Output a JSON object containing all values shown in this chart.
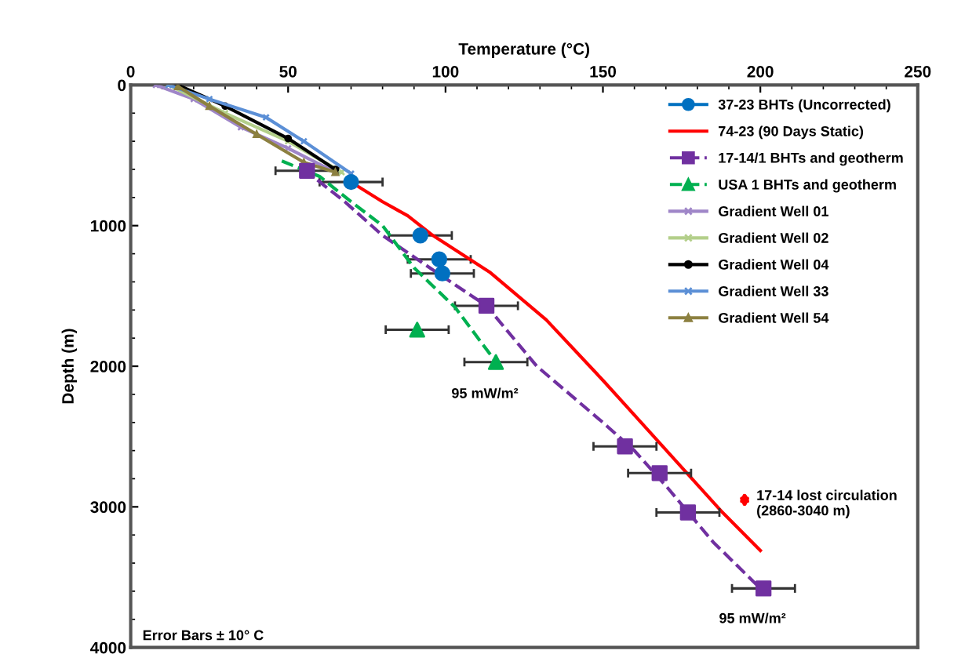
{
  "chart_data": {
    "type": "scatter",
    "xlabel": "Temperature (°C)",
    "ylabel": "Depth (m)",
    "xlim": [
      0,
      250
    ],
    "xticks": [
      0,
      50,
      100,
      150,
      200,
      250
    ],
    "ylim": [
      4000,
      0
    ],
    "yticks": [
      0,
      1000,
      2000,
      3000,
      4000
    ],
    "grid": false,
    "legend": "top right",
    "series": [
      {
        "name": "37-23 BHTs (Uncorrected)",
        "color": "#0070c0",
        "marker": "circle",
        "x": [
          70,
          92,
          98,
          99
        ],
        "values": [
          690,
          1070,
          1240,
          1340
        ],
        "xerrors": [
          10,
          10,
          10,
          10
        ]
      },
      {
        "name": "74-23 (90 Days Static)",
        "type": "line",
        "color": "#ff0000",
        "marker": "none",
        "line_style": "solid",
        "x": [
          70,
          80,
          88,
          96,
          114,
          132,
          150,
          167,
          188,
          200
        ],
        "values": [
          690,
          830,
          930,
          1070,
          1330,
          1670,
          2100,
          2520,
          3040,
          3310
        ]
      },
      {
        "name": "17-14/1 BHTs and geotherm",
        "color": "#7030a0",
        "marker": "square",
        "line_style": "dashed",
        "x": [
          56,
          113,
          157,
          168,
          177,
          201
        ],
        "values": [
          610,
          1570,
          2570,
          2760,
          3040,
          3580
        ],
        "xerrors": [
          10,
          10,
          10,
          10,
          10,
          10
        ]
      },
      {
        "type": "line",
        "color": "#7030a0",
        "marker": "none",
        "line_style": "dashed",
        "x": [
          55,
          68,
          80,
          95,
          113,
          129,
          150,
          160,
          170,
          185,
          200
        ],
        "values": [
          600,
          830,
          1070,
          1300,
          1570,
          2000,
          2400,
          2600,
          2850,
          3250,
          3580
        ]
      },
      {
        "name": "USA 1 BHTs and geotherm",
        "color": "#00b050",
        "marker": "triangle",
        "line_style": "dashed",
        "x": [
          91,
          116
        ],
        "values": [
          1740,
          1970
        ],
        "xerrors": [
          10,
          10
        ]
      },
      {
        "type": "line",
        "color": "#00b050",
        "marker": "none",
        "line_style": "dashed",
        "x": [
          48,
          60,
          70,
          80,
          90,
          103,
          116
        ],
        "values": [
          540,
          650,
          830,
          1000,
          1300,
          1580,
          1970
        ]
      },
      {
        "name": "Gradient Well 01",
        "type": "line",
        "color": "#9f86c8",
        "marker": "cross",
        "line_style": "solid",
        "x": [
          8,
          20,
          35,
          50,
          65
        ],
        "values": [
          0,
          100,
          300,
          450,
          620
        ]
      },
      {
        "name": "Gradient Well 02",
        "type": "line",
        "color": "#b3cf8a",
        "marker": "cross",
        "line_style": "solid",
        "x": [
          12,
          30,
          50,
          67
        ],
        "values": [
          0,
          200,
          400,
          620
        ]
      },
      {
        "name": "Gradient Well 04",
        "type": "line",
        "color": "#000000",
        "marker": "circle",
        "line_style": "solid",
        "x": [
          15,
          30,
          50,
          65
        ],
        "values": [
          0,
          150,
          380,
          600
        ]
      },
      {
        "name": "Gradient Well 33",
        "type": "line",
        "color": "#5b8fd6",
        "marker": "cross",
        "line_style": "solid",
        "x": [
          12,
          25,
          43,
          55,
          70
        ],
        "values": [
          0,
          100,
          230,
          400,
          630
        ]
      },
      {
        "name": "Gradient Well 54",
        "type": "line",
        "color": "#8c8040",
        "marker": "triangle",
        "line_style": "solid",
        "x": [
          15,
          25,
          40,
          55,
          65
        ],
        "values": [
          10,
          150,
          350,
          550,
          620
        ]
      }
    ],
    "annotations": [
      "95 mW/m²",
      "95 mW/m²",
      "17-14 lost circulation\n(2860-3040 m)",
      "Error Bars ± 10° C"
    ]
  }
}
